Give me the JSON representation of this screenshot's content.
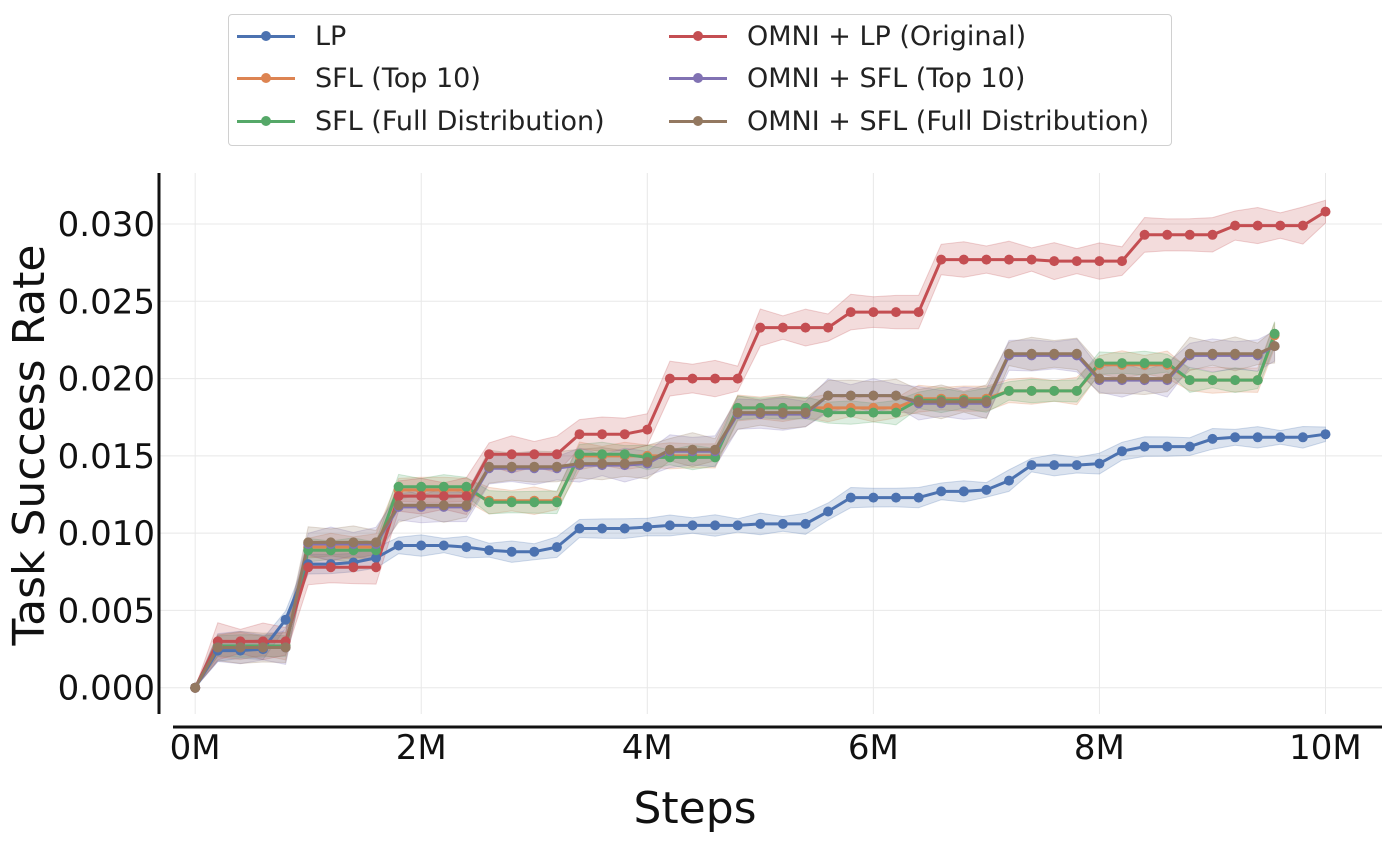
{
  "chart_data": {
    "type": "line",
    "title": "",
    "xlabel": "Steps",
    "ylabel": "Task Success Rate",
    "xlim": [
      -0.32,
      10.5
    ],
    "ylim": [
      -0.0017,
      0.0333
    ],
    "xticks": [
      0,
      2,
      4,
      6,
      8,
      10
    ],
    "xtick_labels": [
      "0M",
      "2M",
      "4M",
      "6M",
      "8M",
      "10M"
    ],
    "yticks": [
      0.0,
      0.005,
      0.01,
      0.015,
      0.02,
      0.025,
      0.03
    ],
    "ytick_labels": [
      "0.000",
      "0.005",
      "0.010",
      "0.015",
      "0.020",
      "0.025",
      "0.030"
    ],
    "grid": true,
    "legend_position": "top-center",
    "series": [
      {
        "name": "LP",
        "color": "#4c72b0",
        "x": [
          0,
          0.2,
          0.4,
          0.6,
          0.8,
          1.0,
          1.2,
          1.4,
          1.6,
          1.8,
          2.0,
          2.2,
          2.4,
          2.6,
          2.8,
          3.0,
          3.2,
          3.4,
          3.6,
          3.8,
          4.0,
          4.2,
          4.4,
          4.6,
          4.8,
          5.0,
          5.2,
          5.4,
          5.6,
          5.8,
          6.0,
          6.2,
          6.4,
          6.6,
          6.8,
          7.0,
          7.2,
          7.4,
          7.6,
          7.8,
          8.0,
          8.2,
          8.4,
          8.6,
          8.8,
          9.0,
          9.2,
          9.4,
          9.6,
          9.8,
          10.0
        ],
        "values": [
          0,
          0.0024,
          0.0024,
          0.0025,
          0.0044,
          0.008,
          0.008,
          0.0081,
          0.0084,
          0.0092,
          0.0092,
          0.0092,
          0.0091,
          0.0089,
          0.0088,
          0.0088,
          0.0091,
          0.0103,
          0.0103,
          0.0103,
          0.0104,
          0.0105,
          0.0105,
          0.0105,
          0.0105,
          0.0106,
          0.0106,
          0.0106,
          0.0114,
          0.0123,
          0.0123,
          0.0123,
          0.0123,
          0.0127,
          0.0127,
          0.0128,
          0.0134,
          0.0144,
          0.0144,
          0.0144,
          0.0145,
          0.0153,
          0.0156,
          0.0156,
          0.0156,
          0.0161,
          0.0162,
          0.0162,
          0.0162,
          0.0162,
          0.0164
        ],
        "band": 0.0007
      },
      {
        "name": "SFL (Top 10)",
        "color": "#dd8452",
        "x": [
          0,
          0.2,
          0.4,
          0.6,
          0.8,
          1.0,
          1.2,
          1.4,
          1.6,
          1.8,
          2.0,
          2.2,
          2.4,
          2.6,
          2.8,
          3.0,
          3.2,
          3.4,
          3.6,
          3.8,
          4.0,
          4.2,
          4.4,
          4.6,
          4.8,
          5.0,
          5.2,
          5.4,
          5.6,
          5.8,
          6.0,
          6.2,
          6.4,
          6.6,
          6.8,
          7.0,
          7.2,
          7.4,
          7.6,
          7.8,
          8.0,
          8.2,
          8.4,
          8.6,
          8.8,
          9.0,
          9.2,
          9.4,
          9.55
        ],
        "values": [
          0,
          0.0027,
          0.0027,
          0.0027,
          0.0027,
          0.0091,
          0.0091,
          0.0091,
          0.0091,
          0.0128,
          0.0128,
          0.0128,
          0.0128,
          0.0121,
          0.0121,
          0.0121,
          0.0121,
          0.015,
          0.015,
          0.015,
          0.015,
          0.015,
          0.015,
          0.015,
          0.0181,
          0.0181,
          0.0181,
          0.0181,
          0.0181,
          0.0181,
          0.0181,
          0.0181,
          0.0187,
          0.0187,
          0.0187,
          0.0187,
          0.0192,
          0.0192,
          0.0192,
          0.0192,
          0.0209,
          0.0209,
          0.0209,
          0.0209,
          0.0199,
          0.0199,
          0.0199,
          0.0199,
          0.0228
        ],
        "band": 0.0009
      },
      {
        "name": "SFL (Full Distribution)",
        "color": "#55a868",
        "x": [
          0,
          0.2,
          0.4,
          0.6,
          0.8,
          1.0,
          1.2,
          1.4,
          1.6,
          1.8,
          2.0,
          2.2,
          2.4,
          2.6,
          2.8,
          3.0,
          3.2,
          3.4,
          3.6,
          3.8,
          4.0,
          4.2,
          4.4,
          4.6,
          4.8,
          5.0,
          5.2,
          5.4,
          5.6,
          5.8,
          6.0,
          6.2,
          6.4,
          6.6,
          6.8,
          7.0,
          7.2,
          7.4,
          7.6,
          7.8,
          8.0,
          8.2,
          8.4,
          8.6,
          8.8,
          9.0,
          9.2,
          9.4,
          9.55
        ],
        "values": [
          0,
          0.0027,
          0.0027,
          0.0027,
          0.0027,
          0.0089,
          0.0089,
          0.0089,
          0.0089,
          0.013,
          0.013,
          0.013,
          0.013,
          0.012,
          0.012,
          0.012,
          0.012,
          0.0151,
          0.0151,
          0.0151,
          0.0149,
          0.0149,
          0.0149,
          0.0149,
          0.0181,
          0.0181,
          0.0181,
          0.0181,
          0.0178,
          0.0178,
          0.0178,
          0.0178,
          0.0186,
          0.0186,
          0.0186,
          0.0186,
          0.0192,
          0.0192,
          0.0192,
          0.0192,
          0.021,
          0.021,
          0.021,
          0.021,
          0.0199,
          0.0199,
          0.0199,
          0.0199,
          0.0229
        ],
        "band": 0.0008
      },
      {
        "name": "OMNI + LP (Original)",
        "color": "#c44e52",
        "x": [
          0,
          0.2,
          0.4,
          0.6,
          0.8,
          1.0,
          1.2,
          1.4,
          1.6,
          1.8,
          2.0,
          2.2,
          2.4,
          2.6,
          2.8,
          3.0,
          3.2,
          3.4,
          3.6,
          3.8,
          4.0,
          4.2,
          4.4,
          4.6,
          4.8,
          5.0,
          5.2,
          5.4,
          5.6,
          5.8,
          6.0,
          6.2,
          6.4,
          6.6,
          6.8,
          7.0,
          7.2,
          7.4,
          7.6,
          7.8,
          8.0,
          8.2,
          8.4,
          8.6,
          8.8,
          9.0,
          9.2,
          9.4,
          9.6,
          9.8,
          10.0
        ],
        "values": [
          0,
          0.003,
          0.003,
          0.003,
          0.003,
          0.0078,
          0.0078,
          0.0078,
          0.0078,
          0.0124,
          0.0124,
          0.0124,
          0.0124,
          0.0151,
          0.0151,
          0.0151,
          0.0151,
          0.0164,
          0.0164,
          0.0164,
          0.0167,
          0.02,
          0.02,
          0.02,
          0.02,
          0.0233,
          0.0233,
          0.0233,
          0.0233,
          0.0243,
          0.0243,
          0.0243,
          0.0243,
          0.0277,
          0.0277,
          0.0277,
          0.0277,
          0.0277,
          0.0276,
          0.0276,
          0.0276,
          0.0276,
          0.0293,
          0.0293,
          0.0293,
          0.0293,
          0.0299,
          0.0299,
          0.0299,
          0.0299,
          0.0308
        ],
        "band": 0.0012
      },
      {
        "name": "OMNI + SFL (Top 10)",
        "color": "#8172b3",
        "x": [
          0,
          0.2,
          0.4,
          0.6,
          0.8,
          1.0,
          1.2,
          1.4,
          1.6,
          1.8,
          2.0,
          2.2,
          2.4,
          2.6,
          2.8,
          3.0,
          3.2,
          3.4,
          3.6,
          3.8,
          4.0,
          4.2,
          4.4,
          4.6,
          4.8,
          5.0,
          5.2,
          5.4,
          5.6,
          5.8,
          6.0,
          6.2,
          6.4,
          6.6,
          6.8,
          7.0,
          7.2,
          7.4,
          7.6,
          7.8,
          8.0,
          8.2,
          8.4,
          8.6,
          8.8,
          9.0,
          9.2,
          9.4,
          9.55
        ],
        "values": [
          0,
          0.0026,
          0.0026,
          0.0026,
          0.0026,
          0.0093,
          0.0093,
          0.0093,
          0.0093,
          0.0117,
          0.0117,
          0.0117,
          0.0117,
          0.0142,
          0.0142,
          0.0142,
          0.0142,
          0.0144,
          0.0144,
          0.0144,
          0.0145,
          0.0153,
          0.0153,
          0.0153,
          0.0177,
          0.0177,
          0.0177,
          0.0177,
          0.0189,
          0.0189,
          0.0189,
          0.0189,
          0.0184,
          0.0184,
          0.0184,
          0.0184,
          0.0215,
          0.0215,
          0.0215,
          0.0215,
          0.0199,
          0.0199,
          0.0199,
          0.0199,
          0.0215,
          0.0215,
          0.0215,
          0.0215,
          0.0221
        ],
        "band": 0.0011
      },
      {
        "name": "OMNI + SFL (Full Distribution)",
        "color": "#937860",
        "x": [
          0,
          0.2,
          0.4,
          0.6,
          0.8,
          1.0,
          1.2,
          1.4,
          1.6,
          1.8,
          2.0,
          2.2,
          2.4,
          2.6,
          2.8,
          3.0,
          3.2,
          3.4,
          3.6,
          3.8,
          4.0,
          4.2,
          4.4,
          4.6,
          4.8,
          5.0,
          5.2,
          5.4,
          5.6,
          5.8,
          6.0,
          6.2,
          6.4,
          6.6,
          6.8,
          7.0,
          7.2,
          7.4,
          7.6,
          7.8,
          8.0,
          8.2,
          8.4,
          8.6,
          8.8,
          9.0,
          9.2,
          9.4,
          9.55
        ],
        "values": [
          0,
          0.0026,
          0.0026,
          0.0026,
          0.0026,
          0.0094,
          0.0094,
          0.0094,
          0.0094,
          0.0118,
          0.0118,
          0.0118,
          0.0118,
          0.0143,
          0.0143,
          0.0143,
          0.0143,
          0.0145,
          0.0145,
          0.0145,
          0.0146,
          0.0154,
          0.0154,
          0.0154,
          0.0178,
          0.0178,
          0.0178,
          0.0178,
          0.0189,
          0.0189,
          0.0189,
          0.0189,
          0.0185,
          0.0185,
          0.0185,
          0.0185,
          0.0216,
          0.0216,
          0.0216,
          0.0216,
          0.02,
          0.02,
          0.02,
          0.02,
          0.0216,
          0.0216,
          0.0216,
          0.0216,
          0.0221
        ],
        "band": 0.0011
      }
    ]
  }
}
